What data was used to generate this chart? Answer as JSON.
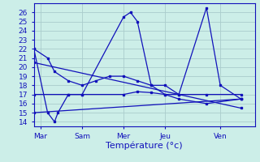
{
  "xlabel": "Température (°c)",
  "background_color": "#cceee8",
  "grid_color": "#aacccc",
  "line_color": "#1111bb",
  "xlim": [
    0,
    32
  ],
  "ylim": [
    13.5,
    27
  ],
  "yticks": [
    14,
    15,
    16,
    17,
    18,
    19,
    20,
    21,
    22,
    23,
    24,
    25,
    26
  ],
  "xtick_positions": [
    1,
    7,
    13,
    19,
    27
  ],
  "xtick_labels": [
    "Mar",
    "Sam",
    "Mer",
    "Jeu",
    "Ven"
  ],
  "series": {
    "big_wave": {
      "x": [
        0,
        2,
        3,
        3.5,
        5,
        7,
        13,
        14,
        15,
        17,
        19,
        21,
        25,
        27,
        30
      ],
      "y": [
        22,
        15,
        14,
        15,
        17,
        17,
        25.5,
        26,
        25,
        18,
        18,
        17,
        26.5,
        18,
        16.5
      ]
    },
    "descending": {
      "x": [
        0,
        2,
        3,
        5,
        7,
        9,
        11,
        13,
        15,
        17,
        19,
        21,
        25,
        30
      ],
      "y": [
        22,
        21,
        19.5,
        18.5,
        18,
        18.5,
        19,
        19,
        18.5,
        18,
        17,
        16.5,
        16,
        16.5
      ]
    },
    "flat_17": {
      "x": [
        0,
        5,
        7,
        13,
        15,
        17,
        19,
        21,
        25,
        30
      ],
      "y": [
        17,
        17,
        17,
        17,
        17.3,
        17.2,
        17,
        17,
        17,
        17
      ]
    },
    "rising_low": {
      "x": [
        0,
        30
      ],
      "y": [
        15,
        16.5
      ]
    },
    "drop_diag": {
      "x": [
        0,
        30
      ],
      "y": [
        20.5,
        15.5
      ]
    }
  }
}
